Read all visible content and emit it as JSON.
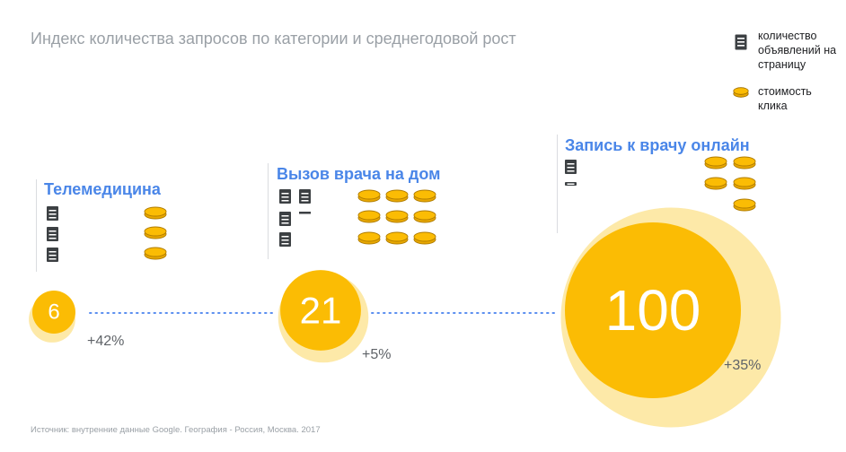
{
  "title": "Индекс количества запросов по категории и среднегодовой рост",
  "legend": {
    "ads_label": "количество объявлений на страницу",
    "cost_label": "стоимость клика",
    "ads_icon": "document-icon",
    "cost_icon": "coin-icon"
  },
  "source": "Источник: внутренние данные Google. География - Россия, Москва. 2017",
  "colors": {
    "circle": "#fbbc04",
    "halo": "#fde9a8",
    "title": "#4a86e8",
    "dots": "#5b8ff0",
    "icon": "#3c4043",
    "coin": "#fbbc04",
    "coin_stroke": "#b07c00"
  },
  "chart_data": {
    "type": "bubble",
    "categories": [
      "Телемедицина",
      "Вызов врача на дом",
      "Запись к врачу онлайн"
    ],
    "index": [
      6,
      21,
      100
    ],
    "index_labels": [
      "6",
      "21",
      "100"
    ],
    "growth": [
      "+42%",
      "+5%",
      "+35%"
    ],
    "ads_per_page": [
      3,
      4.5,
      1.5
    ],
    "cost_per_click": [
      3,
      9,
      5
    ]
  }
}
